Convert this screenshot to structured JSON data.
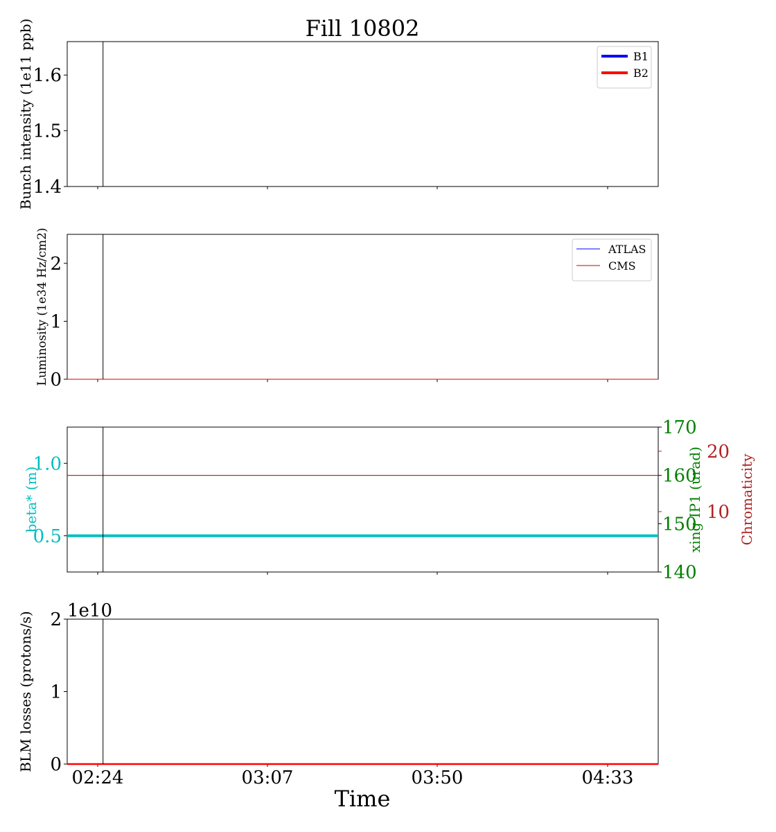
{
  "figure": {
    "title": "Fill 10802",
    "xlabel": "Time",
    "x_ticks": [
      "02:24",
      "03:07",
      "03:50",
      "04:33"
    ],
    "marker_time": "02:25"
  },
  "colors": {
    "b1": "#0000ff",
    "b2": "#ff0000",
    "atlas": "#0000ff",
    "cms": "#cc0000",
    "beta": "#00bfbf",
    "xing": "#008000",
    "chroma": "#b22222",
    "axis": "#000000"
  },
  "chart_data": [
    {
      "id": "intensity",
      "type": "line",
      "ylabel": "Bunch intensity (1e11 ppb)",
      "ylim": [
        1.4,
        1.66
      ],
      "y_ticks": [
        1.4,
        1.5,
        1.6
      ],
      "legend": {
        "placement": "top-right",
        "line_style": "thick"
      },
      "series": [
        {
          "name": "B1",
          "color_key": "b1",
          "values": []
        },
        {
          "name": "B2",
          "color_key": "b2",
          "values": []
        }
      ]
    },
    {
      "id": "luminosity",
      "type": "line",
      "ylabel": "Luminosity (1e34 Hz/cm2)",
      "ylim": [
        0,
        2.5
      ],
      "y_ticks": [
        0,
        1,
        2
      ],
      "legend": {
        "placement": "top-right",
        "line_style": "thin"
      },
      "series": [
        {
          "name": "ATLAS",
          "color_key": "atlas",
          "values": [
            0,
            0
          ]
        },
        {
          "name": "CMS",
          "color_key": "cms",
          "values": [
            0,
            0
          ]
        }
      ]
    },
    {
      "id": "optics",
      "type": "line",
      "ylabel": "beta* (m)",
      "ylim": [
        0.25,
        1.25
      ],
      "y_ticks": [
        0.5,
        1.0
      ],
      "ylabel_right": "xing IP1 (urad)",
      "ylim_right": [
        140,
        170
      ],
      "y_ticks_right": [
        140,
        150,
        160,
        170
      ],
      "ylabel_right2": "Chromaticity",
      "ylim_right2": [
        0,
        24
      ],
      "y_ticks_right2": [
        10,
        20
      ],
      "series": [
        {
          "axis": "left",
          "color_key": "beta",
          "values": [
            0.5,
            0.5
          ]
        },
        {
          "axis": "right",
          "color_key": "xing",
          "values": [
            160,
            160
          ]
        },
        {
          "axis": "right2",
          "color_key": "chroma",
          "values": [
            16,
            16
          ]
        }
      ]
    },
    {
      "id": "losses",
      "type": "line",
      "ylabel": "BLM losses (protons/s)",
      "ylim": [
        0,
        20000000000.0
      ],
      "y_ticks": [
        0,
        1,
        2
      ],
      "offset_text": "1e10",
      "series": [
        {
          "axis": "left",
          "color_key": "b2",
          "values": [
            0,
            0
          ]
        }
      ]
    }
  ]
}
